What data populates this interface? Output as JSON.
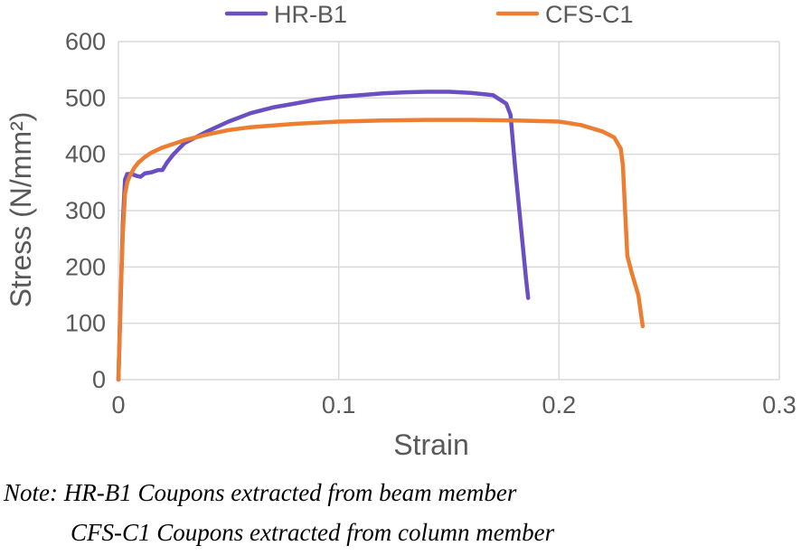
{
  "chart_data": {
    "type": "line",
    "xlabel": "Strain",
    "ylabel": "Stress (N/mm²)",
    "xlim": [
      0,
      0.3
    ],
    "ylim": [
      0,
      600
    ],
    "xticks": [
      "0",
      "0.1",
      "0.2",
      "0.3"
    ],
    "yticks": [
      "0",
      "100",
      "200",
      "300",
      "400",
      "500",
      "600"
    ],
    "grid": true,
    "legend_position": "top",
    "series": [
      {
        "name": "HR-B1",
        "color": "#6a4fc2",
        "x": [
          0,
          0.002,
          0.003,
          0.004,
          0.006,
          0.008,
          0.01,
          0.012,
          0.015,
          0.018,
          0.02,
          0.022,
          0.025,
          0.03,
          0.04,
          0.05,
          0.06,
          0.07,
          0.08,
          0.09,
          0.1,
          0.11,
          0.12,
          0.13,
          0.14,
          0.15,
          0.16,
          0.17,
          0.176,
          0.178,
          0.18,
          0.183,
          0.185,
          0.186
        ],
        "y": [
          0,
          280,
          355,
          365,
          365,
          362,
          360,
          366,
          368,
          372,
          372,
          385,
          400,
          420,
          440,
          458,
          473,
          483,
          490,
          497,
          502,
          505,
          508,
          510,
          511,
          511,
          509,
          505,
          490,
          470,
          380,
          260,
          180,
          145
        ]
      },
      {
        "name": "CFS-C1",
        "color": "#ed7d31",
        "x": [
          0,
          0.001,
          0.002,
          0.003,
          0.004,
          0.005,
          0.007,
          0.009,
          0.012,
          0.015,
          0.02,
          0.03,
          0.04,
          0.05,
          0.06,
          0.08,
          0.1,
          0.12,
          0.14,
          0.16,
          0.18,
          0.2,
          0.21,
          0.22,
          0.225,
          0.228,
          0.229,
          0.23,
          0.231,
          0.233,
          0.236,
          0.238
        ],
        "y": [
          0,
          150,
          260,
          330,
          350,
          360,
          375,
          385,
          395,
          403,
          412,
          425,
          435,
          443,
          448,
          454,
          458,
          460,
          461,
          461,
          460,
          458,
          452,
          440,
          430,
          410,
          380,
          300,
          220,
          190,
          150,
          95
        ]
      }
    ]
  },
  "note": {
    "line1": "Note:  HR-B1 Coupons extracted from beam member",
    "line2": "CFS-C1 Coupons extracted from column member"
  }
}
